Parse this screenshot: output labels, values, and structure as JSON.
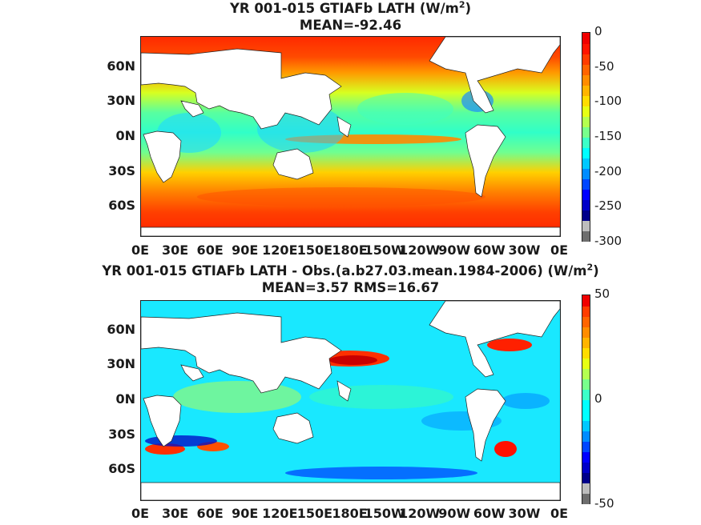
{
  "panels": [
    {
      "title_line1_pre": "YR 001-015 GTIAFb  LATH (W/m",
      "title_line1_sup": "2",
      "title_line1_post": ")",
      "title_line2": "MEAN=-92.46",
      "lat_labels": [
        "60N",
        "30N",
        "0N",
        "30S",
        "60S"
      ],
      "lon_labels": [
        "0E",
        "30E",
        "60E",
        "90E",
        "120E",
        "150E",
        "180E",
        "150W",
        "120W",
        "90W",
        "60W",
        "30W",
        "0E"
      ],
      "colorbar": {
        "ticks": [
          "0",
          "-50",
          "-100",
          "-150",
          "-200",
          "-250",
          "-300"
        ],
        "min": -300,
        "max": 0,
        "colors": [
          "#6e6e6e",
          "#bdbdbd",
          "#00008a",
          "#0000c8",
          "#0000ff",
          "#0046ff",
          "#008cff",
          "#00c8ff",
          "#00ffff",
          "#3cffc8",
          "#78ff8c",
          "#b4ff50",
          "#e6ff14",
          "#ffdc00",
          "#ffb400",
          "#ff8c00",
          "#ff6400",
          "#ff3c00",
          "#ff1400",
          "#f00000"
        ],
        "land_color": "#ffffff"
      }
    },
    {
      "title_line1_pre": "YR 001-015 GTIAFb LATH - Obs.(a.b27.03.mean.1984-2006) (W/m",
      "title_line1_sup": "2",
      "title_line1_post": ")",
      "title_line2": "MEAN=3.57 RMS=16.67",
      "lat_labels": [
        "60N",
        "30N",
        "0N",
        "30S",
        "60S"
      ],
      "lon_labels": [
        "0E",
        "30E",
        "60E",
        "90E",
        "120E",
        "150E",
        "180E",
        "150W",
        "120W",
        "90W",
        "60W",
        "30W",
        "0E"
      ],
      "colorbar": {
        "ticks": [
          "50",
          "0",
          "-50"
        ],
        "min": -50,
        "max": 50,
        "colors": [
          "#6e6e6e",
          "#bdbdbd",
          "#00008a",
          "#0000c8",
          "#0000ff",
          "#0046ff",
          "#008cff",
          "#00c8ff",
          "#00ffff",
          "#00ffff",
          "#3cffc8",
          "#78ff8c",
          "#b4ff50",
          "#e6ff14",
          "#ffdc00",
          "#ffb400",
          "#ff8c00",
          "#ff6400",
          "#ff3c00",
          "#f00000"
        ],
        "land_color": "#ffffff"
      }
    }
  ]
}
